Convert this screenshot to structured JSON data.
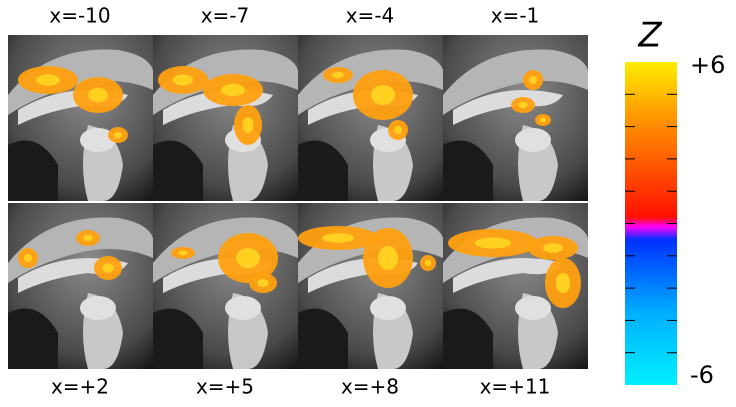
{
  "panels": [
    {
      "label": "x=-10"
    },
    {
      "label": "x=-7"
    },
    {
      "label": "x=-4"
    },
    {
      "label": "x=-1"
    },
    {
      "label": "x=+2"
    },
    {
      "label": "x=+5"
    },
    {
      "label": "x=+8"
    },
    {
      "label": "x=+11"
    }
  ],
  "colorbar": {
    "title": "Z",
    "max_label": "+6",
    "min_label": "-6"
  }
}
